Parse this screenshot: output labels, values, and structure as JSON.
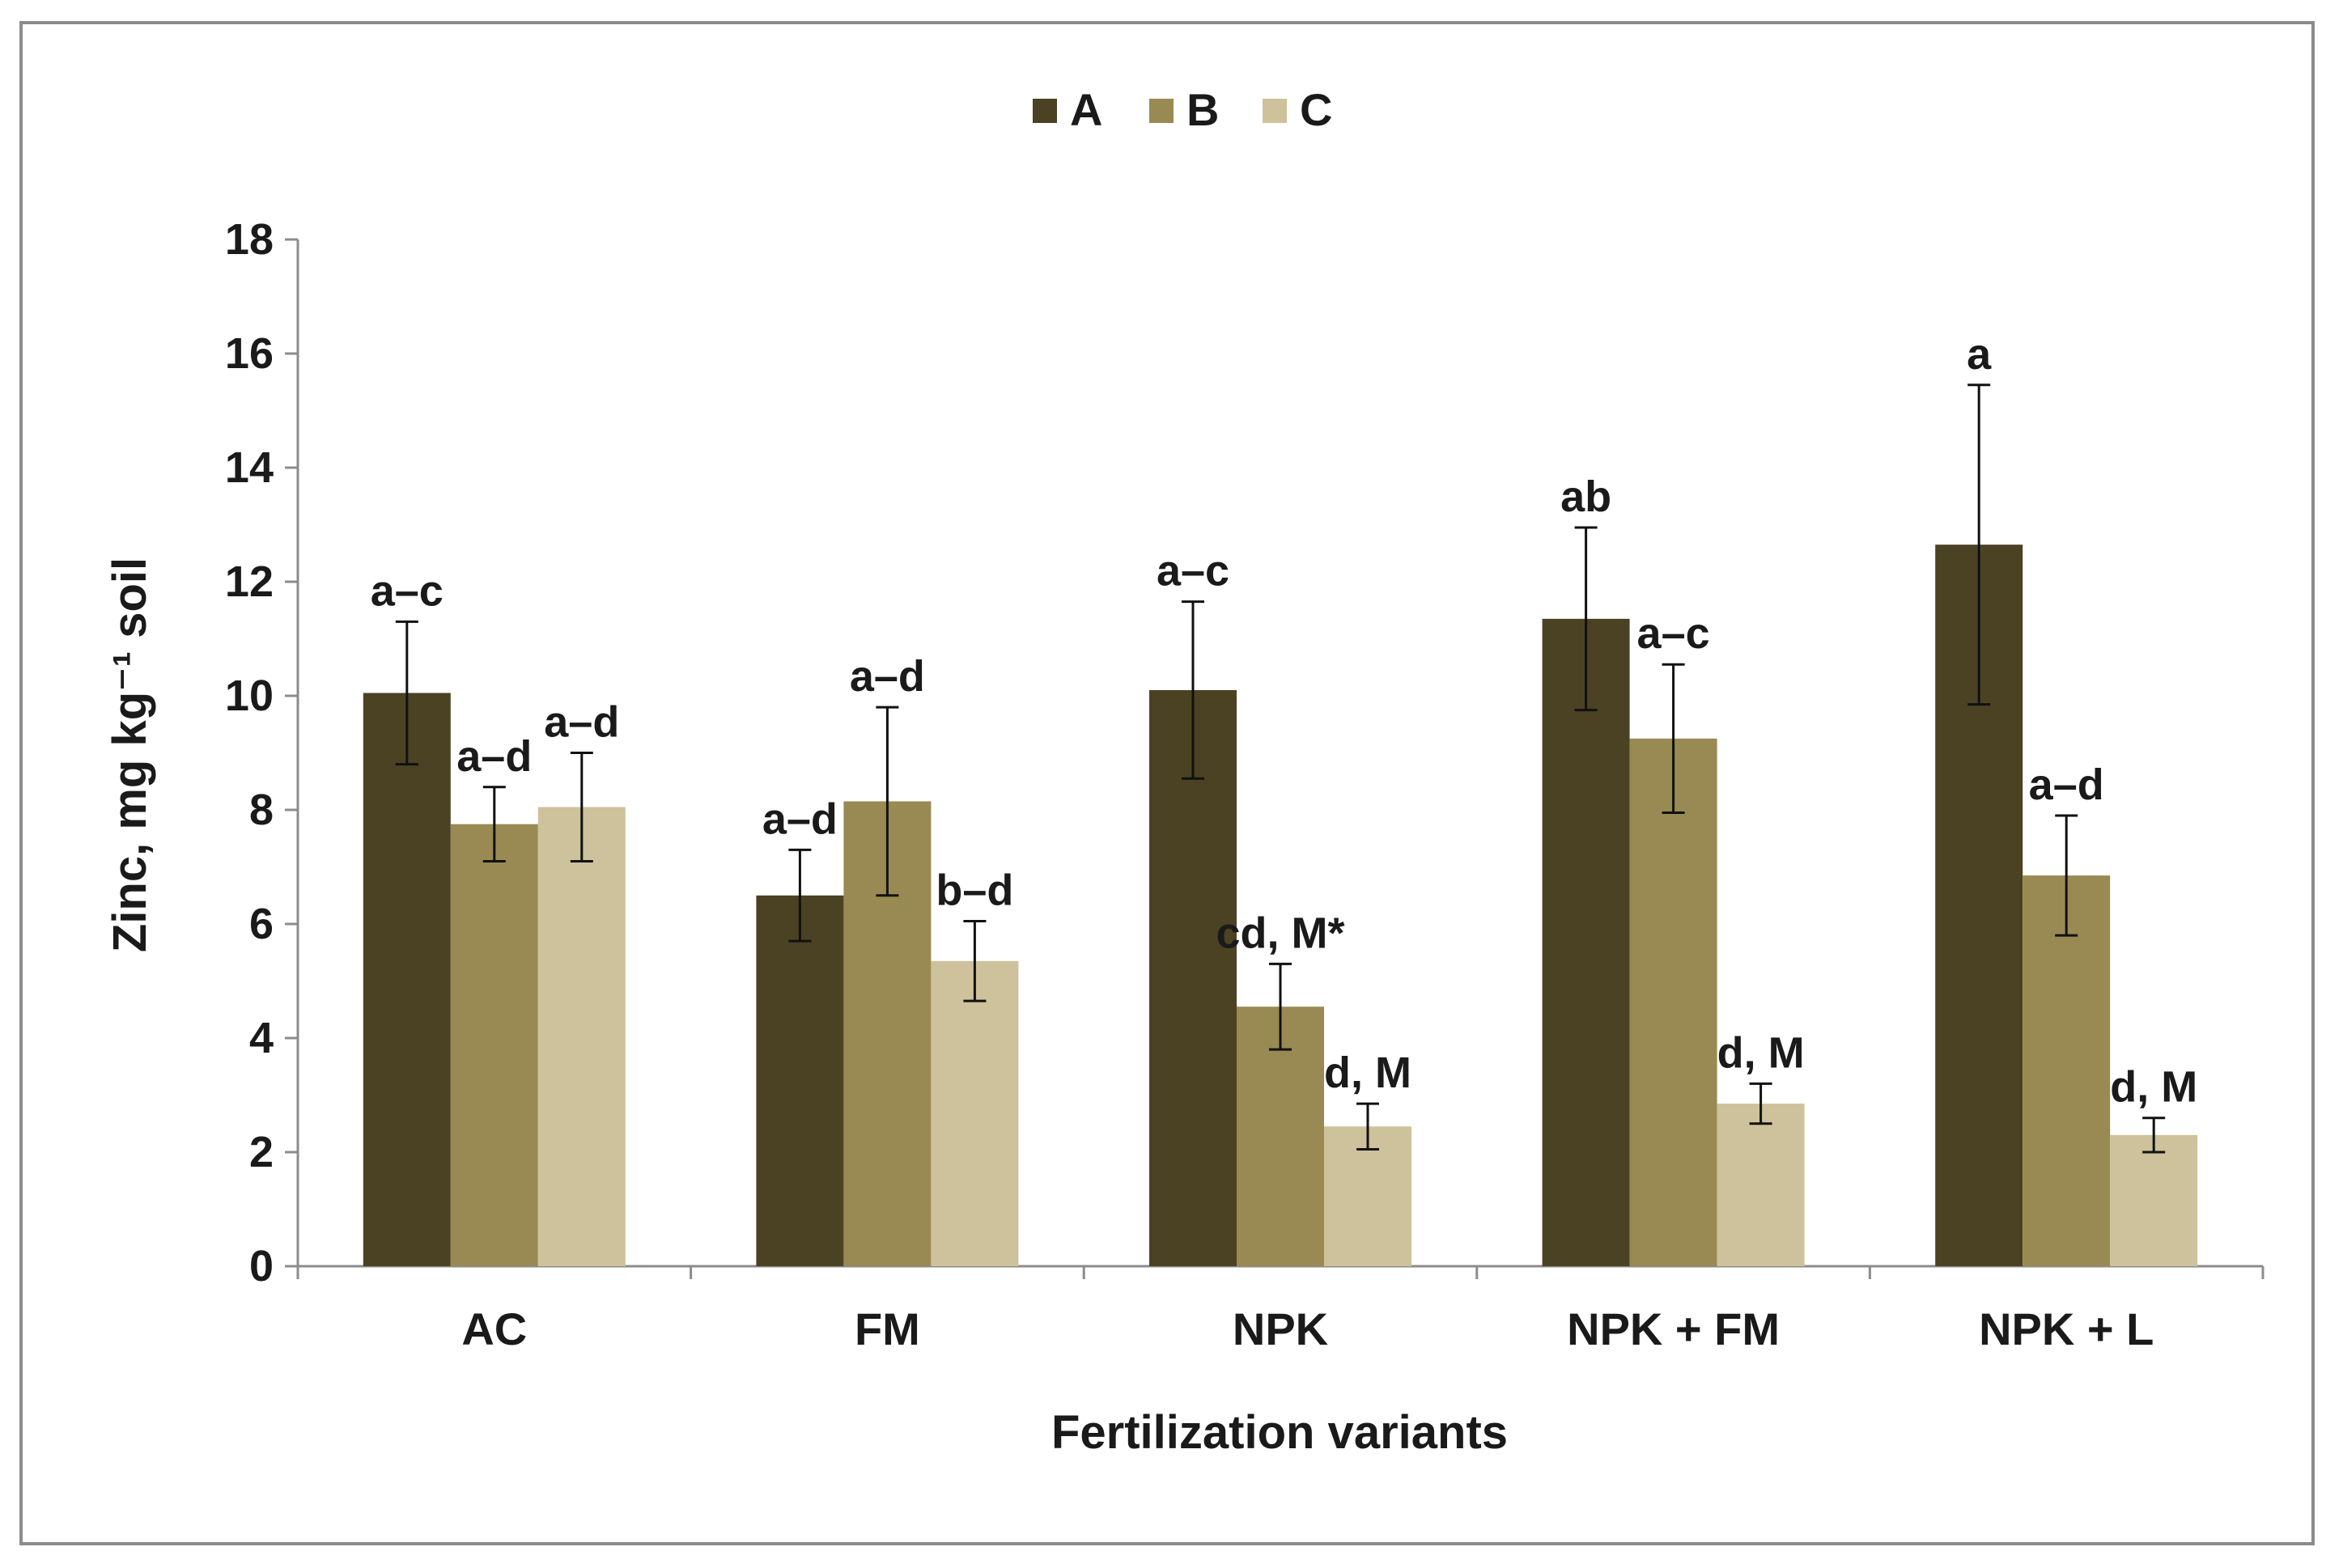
{
  "chart_data": {
    "type": "bar",
    "xlabel": "Fertilization variants",
    "ylabel": "Zinc, mg kg⁻¹ soil",
    "ylim": [
      0,
      18
    ],
    "yticks": [
      0,
      2,
      4,
      6,
      8,
      10,
      12,
      14,
      16,
      18
    ],
    "grid": false,
    "legend_position": "top-center",
    "categories": [
      "AC",
      "FM",
      "NPK",
      "NPK + FM",
      "NPK + L"
    ],
    "series": [
      {
        "name": "A",
        "color": "#4a4223",
        "values": [
          10.05,
          6.5,
          10.1,
          11.35,
          12.65
        ],
        "errors": [
          1.25,
          0.8,
          1.55,
          1.6,
          2.8
        ],
        "annotations": [
          "a–c",
          "a–d",
          "a–c",
          "ab",
          "a"
        ]
      },
      {
        "name": "B",
        "color": "#988a52",
        "values": [
          7.75,
          8.15,
          4.55,
          9.25,
          6.85
        ],
        "errors": [
          0.65,
          1.65,
          0.75,
          1.3,
          1.05
        ],
        "annotations": [
          "a–d",
          "a–d",
          "cd, M*",
          "a–c",
          "a–d"
        ]
      },
      {
        "name": "C",
        "color": "#cdc29b",
        "values": [
          8.05,
          5.35,
          2.45,
          2.85,
          2.3
        ],
        "errors": [
          0.95,
          0.7,
          0.4,
          0.35,
          0.3
        ],
        "annotations": [
          "a–d",
          "b–d",
          "d, M",
          "d, M",
          "d, M"
        ]
      }
    ]
  }
}
